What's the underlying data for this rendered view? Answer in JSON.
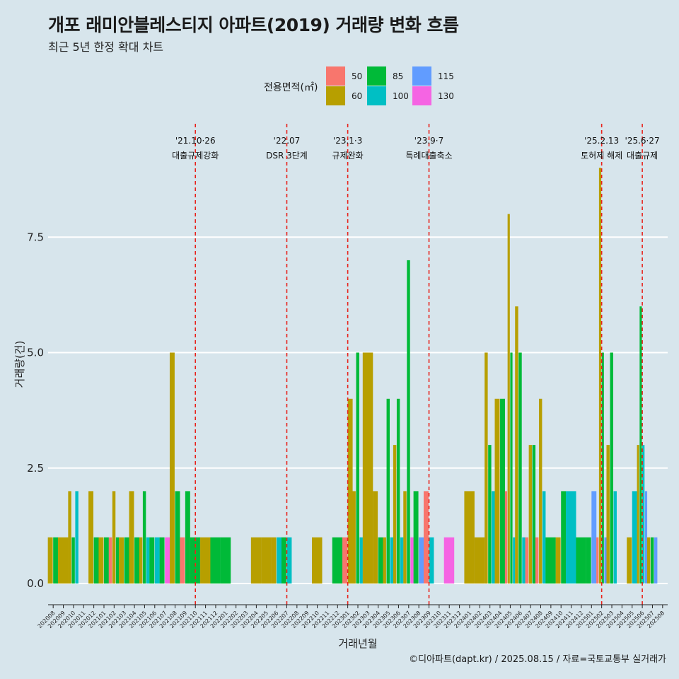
{
  "title": "개포 래미안블레스티지 아파트(2019) 거래량 변화 흐름",
  "subtitle": "최근 5년 한정 확대 차트",
  "caption": "©디아파트(dapt.kr) / 2025.08.15 / 자료=국토교통부 실거래가",
  "legend": {
    "title": "전용면적(㎡)",
    "items": [
      {
        "label": "50",
        "color": "#f8766d"
      },
      {
        "label": "60",
        "color": "#b79f00"
      },
      {
        "label": "85",
        "color": "#00ba38"
      },
      {
        "label": "100",
        "color": "#00bfc4"
      },
      {
        "label": "115",
        "color": "#619cff"
      },
      {
        "label": "130",
        "color": "#f564e3"
      }
    ]
  },
  "chart_data": {
    "type": "bar",
    "title": "개포 래미안블레스티지 아파트(2019) 거래량 변화 흐름",
    "xlabel": "거래년월",
    "ylabel": "거래량(건)",
    "ylim": [
      -0.4,
      9.2
    ],
    "yticks": [
      {
        "value": 0,
        "label": "0.0"
      },
      {
        "value": 2.5,
        "label": "2.5"
      },
      {
        "value": 5,
        "label": "5.0"
      },
      {
        "value": 7.5,
        "label": "7.5"
      }
    ],
    "series_order": [
      "50",
      "60",
      "85",
      "100",
      "115",
      "130"
    ],
    "months": [
      "202008",
      "202009",
      "202010",
      "202011",
      "202012",
      "202101",
      "202102",
      "202103",
      "202104",
      "202105",
      "202106",
      "202107",
      "202108",
      "202109",
      "202110",
      "202111",
      "202112",
      "202201",
      "202202",
      "202203",
      "202204",
      "202205",
      "202206",
      "202207",
      "202208",
      "202209",
      "202210",
      "202211",
      "202212",
      "202301",
      "202302",
      "202303",
      "202304",
      "202305",
      "202306",
      "202307",
      "202308",
      "202309",
      "202310",
      "202311",
      "202312",
      "202401",
      "202402",
      "202403",
      "202404",
      "202405",
      "202406",
      "202407",
      "202408",
      "202409",
      "202410",
      "202411",
      "202412",
      "202501",
      "202502",
      "202503",
      "202504",
      "202505",
      "202506",
      "202507",
      "202508"
    ],
    "bars": [
      {
        "month": "202008",
        "values": {
          "60": 1,
          "85": 1
        }
      },
      {
        "month": "202009",
        "values": {
          "60": 1
        }
      },
      {
        "month": "202010",
        "values": {
          "60": 2,
          "85": 1,
          "100": 2
        }
      },
      {
        "month": "202012",
        "values": {
          "60": 2,
          "85": 1
        }
      },
      {
        "month": "202101",
        "values": {
          "60": 1,
          "85": 1
        }
      },
      {
        "month": "202102",
        "values": {
          "50": 1,
          "60": 2,
          "85": 1
        }
      },
      {
        "month": "202103",
        "values": {
          "60": 1,
          "85": 1
        }
      },
      {
        "month": "202104",
        "values": {
          "60": 2,
          "85": 1
        }
      },
      {
        "month": "202105",
        "values": {
          "60": 1,
          "85": 2,
          "100": 1
        }
      },
      {
        "month": "202106",
        "values": {
          "85": 1,
          "100": 1
        }
      },
      {
        "month": "202107",
        "values": {
          "85": 1,
          "130": 1
        }
      },
      {
        "month": "202108",
        "values": {
          "60": 5,
          "85": 2
        }
      },
      {
        "month": "202109",
        "values": {
          "50": 1,
          "85": 2
        }
      },
      {
        "month": "202110",
        "values": {
          "85": 1
        }
      },
      {
        "month": "202111",
        "values": {
          "60": 1
        }
      },
      {
        "month": "202112",
        "values": {
          "85": 1
        }
      },
      {
        "month": "202201",
        "values": {
          "85": 1
        }
      },
      {
        "month": "202204",
        "values": {
          "60": 1
        }
      },
      {
        "month": "202205",
        "values": {
          "60": 1
        }
      },
      {
        "month": "202206",
        "values": {
          "60": 1,
          "100": 1
        }
      },
      {
        "month": "202207",
        "values": {
          "85": 1,
          "100": 1
        }
      },
      {
        "month": "202210",
        "values": {
          "60": 1
        }
      },
      {
        "month": "202212",
        "values": {
          "85": 1
        }
      },
      {
        "month": "202301",
        "values": {
          "50": 1,
          "60": 4
        }
      },
      {
        "month": "202302",
        "values": {
          "60": 2,
          "85": 5,
          "100": 1
        }
      },
      {
        "month": "202303",
        "values": {
          "60": 5
        }
      },
      {
        "month": "202304",
        "values": {
          "60": 2,
          "85": 1
        }
      },
      {
        "month": "202305",
        "values": {
          "60": 1,
          "85": 4,
          "100": 1
        }
      },
      {
        "month": "202306",
        "values": {
          "60": 3,
          "85": 4,
          "100": 1
        }
      },
      {
        "month": "202307",
        "values": {
          "60": 2,
          "85": 7,
          "130": 1
        }
      },
      {
        "month": "202308",
        "values": {
          "85": 2,
          "115": 1
        }
      },
      {
        "month": "202309",
        "values": {
          "50": 2,
          "100": 1
        }
      },
      {
        "month": "202311",
        "values": {
          "130": 1
        }
      },
      {
        "month": "202401",
        "values": {
          "60": 2
        }
      },
      {
        "month": "202402",
        "values": {
          "60": 1
        }
      },
      {
        "month": "202403",
        "values": {
          "60": 5,
          "85": 3,
          "100": 2
        }
      },
      {
        "month": "202404",
        "values": {
          "60": 4,
          "85": 4
        }
      },
      {
        "month": "202405",
        "values": {
          "50": 2,
          "60": 8,
          "85": 5,
          "100": 1
        }
      },
      {
        "month": "202406",
        "values": {
          "60": 6,
          "85": 5,
          "100": 1
        }
      },
      {
        "month": "202407",
        "values": {
          "50": 1,
          "60": 3,
          "85": 3
        }
      },
      {
        "month": "202408",
        "values": {
          "50": 1,
          "60": 4,
          "100": 2
        }
      },
      {
        "month": "202409",
        "values": {
          "85": 1
        }
      },
      {
        "month": "202410",
        "values": {
          "60": 1,
          "85": 2
        }
      },
      {
        "month": "202411",
        "values": {
          "100": 2
        }
      },
      {
        "month": "202412",
        "values": {
          "85": 1
        }
      },
      {
        "month": "202501",
        "values": {
          "85": 1,
          "115": 2
        }
      },
      {
        "month": "202502",
        "values": {
          "50": 1,
          "60": 9,
          "85": 5,
          "115": 1
        }
      },
      {
        "month": "202503",
        "values": {
          "60": 3,
          "85": 5,
          "100": 2
        }
      },
      {
        "month": "202505",
        "values": {
          "60": 1,
          "100": 2
        }
      },
      {
        "month": "202506",
        "values": {
          "60": 3,
          "85": 6,
          "100": 3,
          "115": 2
        }
      },
      {
        "month": "202507",
        "values": {
          "60": 1,
          "85": 1,
          "115": 1
        }
      }
    ],
    "events": [
      {
        "month": "202110",
        "line1": "'21.10·26",
        "line2": "대출규제강화"
      },
      {
        "month": "202207",
        "line1": "'22.07",
        "line2": "DSR 3단계"
      },
      {
        "month": "202301",
        "line1": "'23.1·3",
        "line2": "규제완화"
      },
      {
        "month": "202309",
        "line1": "'23.9·7",
        "line2": "특례대출축소"
      },
      {
        "month": "202502",
        "line1": "'25.2.13",
        "line2": "토허제 해제"
      },
      {
        "month": "202506",
        "line1": "'25.6·27",
        "line2": "대출규제"
      }
    ]
  }
}
